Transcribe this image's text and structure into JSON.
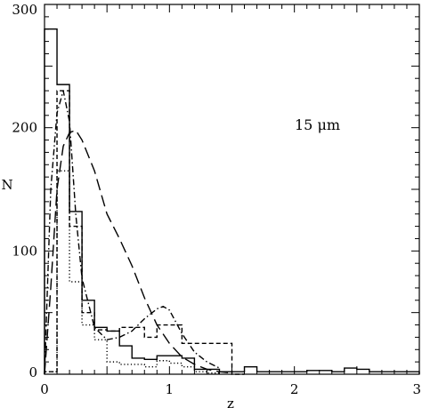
{
  "chart_data": {
    "type": "line",
    "xlabel": "z",
    "ylabel": "N",
    "xlim": [
      0,
      3
    ],
    "ylim": [
      0,
      300
    ],
    "xticks": [
      "0",
      "1",
      "2",
      "3"
    ],
    "yticks": [
      "0",
      "100",
      "200",
      "300"
    ],
    "grid": false,
    "annotations": [
      {
        "text": "15 μm",
        "x": 2.02,
        "y": 200
      }
    ],
    "series": [
      {
        "style": "solid-histogram",
        "bin_width": 0.1,
        "bin_starts": [
          0.0,
          0.1,
          0.2,
          0.3,
          0.4,
          0.5,
          0.6,
          0.7,
          0.8,
          0.9,
          1.0,
          1.1,
          1.2,
          1.3,
          1.4,
          1.5,
          1.6,
          1.7,
          1.8,
          1.9,
          2.0,
          2.1,
          2.2,
          2.3,
          2.4,
          2.5,
          2.6,
          2.7,
          2.8,
          2.9
        ],
        "values": [
          280,
          235,
          132,
          60,
          38,
          35,
          23,
          13,
          12,
          15,
          15,
          13,
          4,
          4,
          2,
          2,
          6,
          2,
          2,
          2,
          2,
          3,
          3,
          2,
          5,
          4,
          2,
          2,
          2,
          2
        ]
      },
      {
        "style": "dotted-histogram",
        "bin_width": 0.1,
        "bin_starts": [
          0.0,
          0.1,
          0.2,
          0.3,
          0.4,
          0.5,
          0.6,
          0.7,
          0.8,
          0.9,
          1.0,
          1.1,
          1.2,
          1.3
        ],
        "values": [
          2,
          165,
          75,
          40,
          28,
          10,
          8,
          8,
          6,
          11,
          9,
          6,
          2,
          1
        ]
      },
      {
        "style": "short-dashed-histogram",
        "bin_width": 0.1,
        "bin_starts": [
          0.0,
          0.1,
          0.2,
          0.3,
          0.4,
          0.5,
          0.6,
          0.7,
          0.8,
          0.9,
          1.0,
          1.1,
          1.2,
          1.3,
          1.4,
          1.5
        ],
        "values": [
          2,
          230,
          120,
          50,
          36,
          35,
          38,
          38,
          30,
          40,
          40,
          25,
          25,
          25,
          25,
          0
        ]
      },
      {
        "style": "long-dashed",
        "x": [
          0.0,
          0.05,
          0.1,
          0.15,
          0.2,
          0.25,
          0.3,
          0.4,
          0.5,
          0.6,
          0.7,
          0.8,
          0.9,
          1.0,
          1.1,
          1.2,
          1.3,
          1.4,
          1.5
        ],
        "y": [
          0,
          70,
          150,
          185,
          196,
          198,
          190,
          165,
          130,
          110,
          88,
          62,
          40,
          25,
          14,
          8,
          4,
          2,
          1
        ]
      },
      {
        "style": "dash-dot",
        "x": [
          0.0,
          0.05,
          0.1,
          0.15,
          0.2,
          0.25,
          0.3,
          0.4,
          0.5,
          0.6,
          0.7,
          0.8,
          0.9,
          0.95,
          1.0,
          1.1,
          1.2,
          1.3,
          1.4
        ],
        "y": [
          0,
          150,
          212,
          230,
          205,
          130,
          78,
          38,
          28,
          30,
          35,
          45,
          53,
          55,
          52,
          33,
          18,
          10,
          5
        ]
      }
    ]
  }
}
